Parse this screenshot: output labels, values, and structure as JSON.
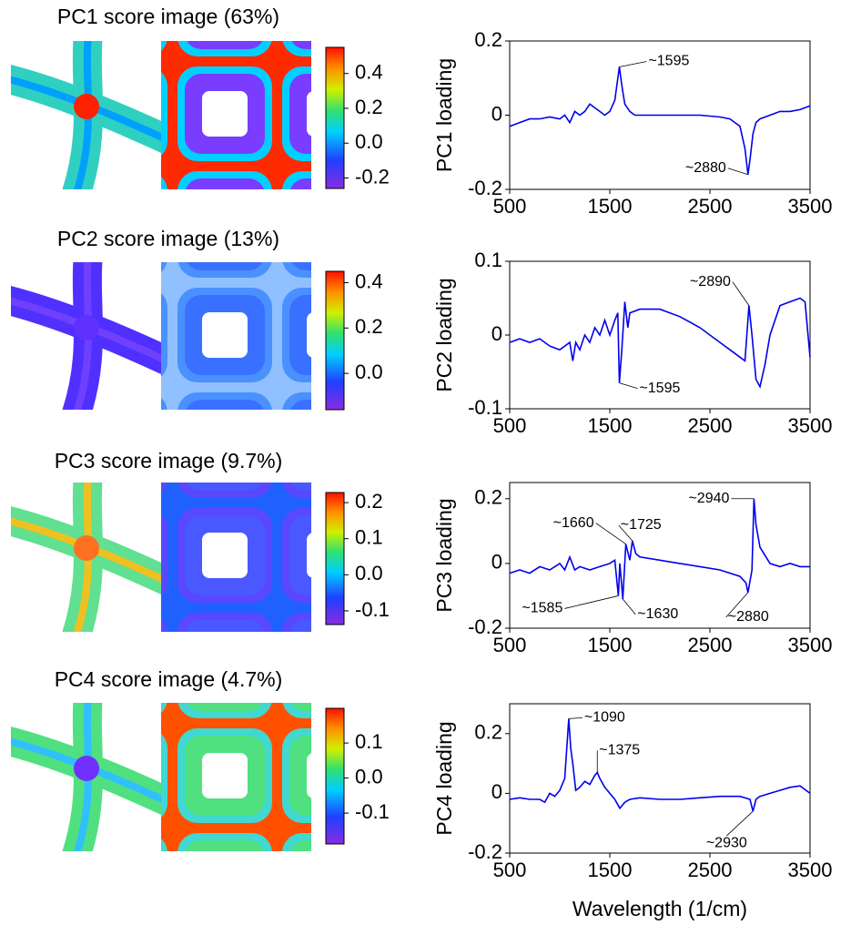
{
  "chart_data": [
    {
      "type": "heatmap",
      "title": "PC1 score image (63%)",
      "clim": [
        -0.26,
        0.55
      ],
      "cticks": [
        0.4,
        0.2,
        {
          "value": 0,
          "label": "0.0"
        },
        -0.2
      ]
    },
    {
      "type": "line",
      "ylabel": "PC1 loading",
      "xlim": [
        500,
        3500
      ],
      "xticks": [
        500,
        1500,
        2500,
        3500
      ],
      "ylim": [
        -0.2,
        0.2
      ],
      "yticks": [
        0.2,
        0,
        -0.2
      ],
      "x": [
        500,
        600,
        700,
        800,
        900,
        1000,
        1050,
        1100,
        1150,
        1200,
        1250,
        1300,
        1350,
        1400,
        1450,
        1500,
        1550,
        1595,
        1620,
        1650,
        1700,
        1750,
        1800,
        2000,
        2200,
        2400,
        2600,
        2700,
        2800,
        2850,
        2880,
        2900,
        2930,
        2960,
        3000,
        3100,
        3200,
        3300,
        3400,
        3500
      ],
      "series": [
        {
          "color": "#0000ee",
          "values": [
            -0.03,
            -0.02,
            -0.01,
            -0.01,
            -0.005,
            -0.01,
            0.0,
            -0.02,
            0.01,
            0.0,
            0.01,
            0.03,
            0.02,
            0.01,
            0.0,
            0.01,
            0.04,
            0.13,
            0.08,
            0.03,
            0.01,
            0.0,
            0.0,
            0.0,
            0.0,
            0.0,
            -0.005,
            -0.01,
            -0.03,
            -0.09,
            -0.16,
            -0.12,
            -0.05,
            -0.02,
            -0.01,
            0.0,
            0.01,
            0.01,
            0.015,
            0.025
          ]
        }
      ],
      "annotations": [
        {
          "text": "~1595",
          "x": 1595,
          "y": 0.13
        },
        {
          "text": "~2880",
          "x": 2880,
          "y": -0.16
        }
      ]
    },
    {
      "type": "heatmap",
      "title": "PC2 score image (13%)",
      "clim": [
        -0.16,
        0.45
      ],
      "cticks": [
        0.4,
        0.2,
        {
          "value": 0,
          "label": "0.0"
        }
      ]
    },
    {
      "type": "line",
      "ylabel": "PC2 loading",
      "xlim": [
        500,
        3500
      ],
      "xticks": [
        500,
        1500,
        2500,
        3500
      ],
      "ylim": [
        -0.1,
        0.1
      ],
      "yticks": [
        0.1,
        0,
        -0.1
      ],
      "x": [
        500,
        600,
        700,
        800,
        900,
        1000,
        1100,
        1130,
        1160,
        1200,
        1250,
        1300,
        1350,
        1400,
        1450,
        1500,
        1550,
        1580,
        1595,
        1620,
        1650,
        1680,
        1700,
        1800,
        2000,
        2200,
        2400,
        2600,
        2700,
        2800,
        2850,
        2890,
        2920,
        2960,
        3000,
        3050,
        3100,
        3200,
        3300,
        3400,
        3450,
        3500
      ],
      "series": [
        {
          "color": "#0000ee",
          "values": [
            -0.01,
            -0.005,
            -0.01,
            -0.005,
            -0.015,
            -0.02,
            -0.01,
            -0.035,
            -0.01,
            -0.02,
            0.0,
            -0.01,
            0.01,
            0.0,
            0.02,
            0.0,
            0.02,
            0.03,
            -0.065,
            -0.02,
            0.045,
            0.01,
            0.03,
            0.035,
            0.035,
            0.025,
            0.01,
            -0.01,
            -0.02,
            -0.03,
            -0.035,
            0.04,
            0.0,
            -0.06,
            -0.07,
            -0.04,
            0.0,
            0.04,
            0.045,
            0.05,
            0.045,
            -0.03
          ]
        }
      ],
      "annotations": [
        {
          "text": "~2890",
          "x": 2890,
          "y": 0.04
        },
        {
          "text": "~1595",
          "x": 1595,
          "y": -0.065
        }
      ]
    },
    {
      "type": "heatmap",
      "title": "PC3 score image (9.7%)",
      "clim": [
        -0.138,
        0.228
      ],
      "cticks": [
        0.2,
        0.1,
        {
          "value": 0,
          "label": "0.0"
        },
        -0.1
      ]
    },
    {
      "type": "line",
      "ylabel": "PC3 loading",
      "xlim": [
        500,
        3500
      ],
      "xticks": [
        500,
        1500,
        2500,
        3500
      ],
      "ylim": [
        -0.2,
        0.25
      ],
      "yticks": [
        0.2,
        0,
        -0.2
      ],
      "x": [
        500,
        600,
        700,
        800,
        900,
        1000,
        1050,
        1100,
        1150,
        1200,
        1300,
        1400,
        1500,
        1550,
        1585,
        1600,
        1630,
        1660,
        1700,
        1725,
        1760,
        1800,
        2000,
        2200,
        2400,
        2600,
        2800,
        2860,
        2880,
        2920,
        2940,
        2960,
        3000,
        3100,
        3200,
        3300,
        3400,
        3500
      ],
      "series": [
        {
          "color": "#0000ee",
          "values": [
            -0.03,
            -0.02,
            -0.03,
            -0.01,
            -0.02,
            0.0,
            -0.02,
            0.02,
            -0.02,
            -0.01,
            -0.02,
            -0.01,
            0.0,
            0.01,
            -0.1,
            0.0,
            -0.11,
            0.06,
            0.01,
            0.07,
            0.03,
            0.02,
            0.01,
            0.0,
            -0.01,
            -0.02,
            -0.04,
            -0.06,
            -0.09,
            -0.02,
            0.2,
            0.12,
            0.05,
            0.0,
            -0.01,
            0.0,
            -0.01,
            -0.01
          ]
        }
      ],
      "annotations": [
        {
          "text": "~1660",
          "x": 1660,
          "y": 0.06
        },
        {
          "text": "~1725",
          "x": 1725,
          "y": 0.07
        },
        {
          "text": "~2940",
          "x": 2940,
          "y": 0.2
        },
        {
          "text": "~1585",
          "x": 1585,
          "y": -0.1
        },
        {
          "text": "~1630",
          "x": 1630,
          "y": -0.11
        },
        {
          "text": "~2880",
          "x": 2880,
          "y": -0.09
        }
      ]
    },
    {
      "type": "heatmap",
      "title": "PC4 score image (4.7%)",
      "clim": [
        -0.188,
        0.199
      ],
      "cticks": [
        0.1,
        {
          "value": 0,
          "label": "0.0"
        },
        -0.1
      ]
    },
    {
      "type": "line",
      "ylabel": "PC4 loading",
      "xlabel": "Wavelength (1/cm)",
      "xlim": [
        500,
        3500
      ],
      "xticks": [
        500,
        1500,
        2500,
        3500
      ],
      "ylim": [
        -0.2,
        0.3
      ],
      "yticks": [
        0.2,
        0,
        -0.2
      ],
      "x": [
        500,
        600,
        700,
        800,
        850,
        900,
        950,
        1000,
        1050,
        1090,
        1110,
        1130,
        1160,
        1200,
        1250,
        1300,
        1350,
        1375,
        1400,
        1450,
        1500,
        1550,
        1600,
        1650,
        1700,
        1800,
        2000,
        2200,
        2400,
        2600,
        2800,
        2900,
        2930,
        2960,
        3000,
        3100,
        3200,
        3300,
        3400,
        3500
      ],
      "series": [
        {
          "color": "#0000ee",
          "values": [
            -0.02,
            -0.015,
            -0.02,
            -0.02,
            -0.03,
            0.0,
            -0.01,
            0.01,
            0.05,
            0.25,
            0.15,
            0.1,
            0.01,
            0.02,
            0.04,
            0.03,
            0.06,
            0.07,
            0.05,
            0.02,
            0.0,
            -0.02,
            -0.05,
            -0.03,
            -0.02,
            -0.015,
            -0.02,
            -0.02,
            -0.015,
            -0.01,
            -0.01,
            -0.02,
            -0.06,
            -0.02,
            -0.01,
            0.0,
            0.01,
            0.02,
            0.025,
            0.0
          ]
        }
      ],
      "annotations": [
        {
          "text": "~1090",
          "x": 1090,
          "y": 0.25
        },
        {
          "text": "~1375",
          "x": 1375,
          "y": 0.07
        },
        {
          "text": "~2930",
          "x": 2930,
          "y": -0.06
        }
      ]
    }
  ]
}
